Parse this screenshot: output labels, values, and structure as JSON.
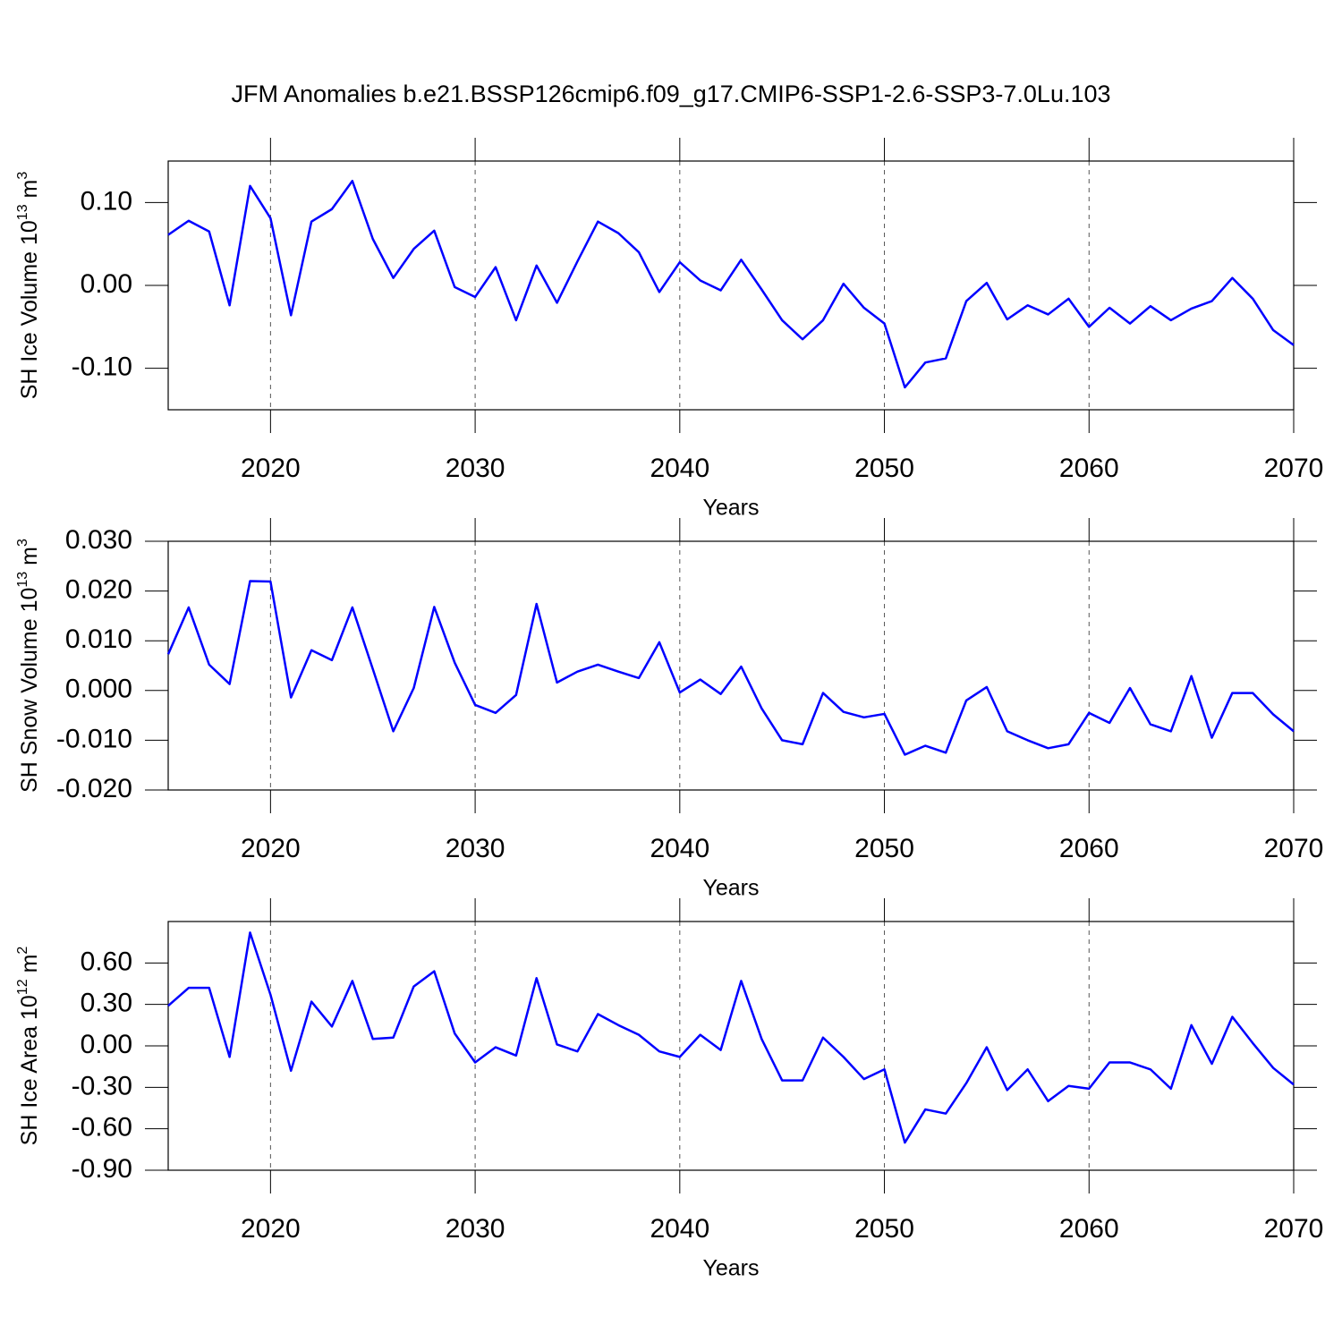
{
  "title": "JFM Anomalies b.e21.BSSP126cmip6.f09_g17.CMIP6-SSP1-2.6-SSP3-7.0Lu.103",
  "chart_data": [
    {
      "type": "line",
      "color": "#0000ff",
      "xlabel": "Years",
      "ylabel": [
        "SH Ice Volume 10",
        "13",
        " m",
        "3"
      ],
      "x": [
        2015,
        2016,
        2017,
        2018,
        2019,
        2020,
        2021,
        2022,
        2023,
        2024,
        2025,
        2026,
        2027,
        2028,
        2029,
        2030,
        2031,
        2032,
        2033,
        2034,
        2035,
        2036,
        2037,
        2038,
        2039,
        2040,
        2041,
        2042,
        2043,
        2044,
        2045,
        2046,
        2047,
        2048,
        2049,
        2050,
        2051,
        2052,
        2053,
        2054,
        2055,
        2056,
        2057,
        2058,
        2059,
        2060,
        2061,
        2062,
        2063,
        2064,
        2065,
        2066,
        2067,
        2068,
        2069,
        2070
      ],
      "values": [
        0.061,
        0.078,
        0.065,
        -0.024,
        0.12,
        0.081,
        -0.036,
        0.077,
        0.092,
        0.126,
        0.056,
        0.009,
        0.044,
        0.066,
        -0.002,
        -0.014,
        0.022,
        -0.042,
        0.024,
        -0.021,
        0.029,
        0.077,
        0.063,
        0.04,
        -0.008,
        0.028,
        0.006,
        -0.006,
        0.031,
        -0.005,
        -0.042,
        -0.065,
        -0.042,
        0.002,
        -0.027,
        -0.046,
        -0.123,
        -0.093,
        -0.088,
        -0.019,
        0.003,
        -0.041,
        -0.024,
        -0.035,
        -0.016,
        -0.05,
        -0.027,
        -0.046,
        -0.025,
        -0.042,
        -0.028,
        -0.019,
        0.009,
        -0.016,
        -0.054,
        -0.072
      ],
      "xlim": [
        2015,
        2070
      ],
      "xticks": [
        2020,
        2030,
        2040,
        2050,
        2060,
        2070
      ],
      "xgrid": true,
      "ylim": [
        -0.15,
        0.15
      ],
      "yticks": [
        {
          "value": 0.1,
          "label": "0.10"
        },
        {
          "value": 0,
          "label": "0.00"
        },
        {
          "value": -0.1,
          "label": "-0.10"
        }
      ]
    },
    {
      "type": "line",
      "color": "#0000ff",
      "xlabel": "Years",
      "ylabel": [
        "SH Snow Volume 10",
        "13",
        " m",
        "3"
      ],
      "x": [
        2015,
        2016,
        2017,
        2018,
        2019,
        2020,
        2021,
        2022,
        2023,
        2024,
        2025,
        2026,
        2027,
        2028,
        2029,
        2030,
        2031,
        2032,
        2033,
        2034,
        2035,
        2036,
        2037,
        2038,
        2039,
        2040,
        2041,
        2042,
        2043,
        2044,
        2045,
        2046,
        2047,
        2048,
        2049,
        2050,
        2051,
        2052,
        2053,
        2054,
        2055,
        2056,
        2057,
        2058,
        2059,
        2060,
        2061,
        2062,
        2063,
        2064,
        2065,
        2066,
        2067,
        2068,
        2069,
        2070
      ],
      "values": [
        0.0073,
        0.0167,
        0.0052,
        0.0013,
        0.022,
        0.0219,
        -0.0014,
        0.0081,
        0.0061,
        0.0167,
        0.0043,
        -0.0082,
        0.0005,
        0.0168,
        0.0056,
        -0.0029,
        -0.0045,
        -0.0009,
        0.0174,
        0.0016,
        0.0038,
        0.0052,
        0.0038,
        0.0025,
        0.0097,
        -0.0004,
        0.0022,
        -0.0007,
        0.0048,
        -0.0036,
        -0.01,
        -0.0108,
        -0.0005,
        -0.0043,
        -0.0054,
        -0.0047,
        -0.0129,
        -0.0111,
        -0.0125,
        -0.002,
        0.0007,
        -0.0082,
        -0.01,
        -0.0116,
        -0.0108,
        -0.0045,
        -0.0065,
        0.0005,
        -0.0068,
        -0.0082,
        0.0029,
        -0.0095,
        -0.0005,
        -0.0005,
        -0.0048,
        -0.0082
      ],
      "xlim": [
        2015,
        2070
      ],
      "xticks": [
        2020,
        2030,
        2040,
        2050,
        2060,
        2070
      ],
      "xgrid": true,
      "ylim": [
        -0.02,
        0.03
      ],
      "yticks": [
        {
          "value": 0.03,
          "label": "0.030"
        },
        {
          "value": 0.02,
          "label": "0.020"
        },
        {
          "value": 0.01,
          "label": "0.010"
        },
        {
          "value": 0,
          "label": "0.000"
        },
        {
          "value": -0.01,
          "label": "-0.010"
        },
        {
          "value": -0.02,
          "label": "-0.020"
        }
      ]
    },
    {
      "type": "line",
      "color": "#0000ff",
      "xlabel": "Years",
      "ylabel": [
        "SH Ice Area 10",
        "12",
        " m",
        "2"
      ],
      "x": [
        2015,
        2016,
        2017,
        2018,
        2019,
        2020,
        2021,
        2022,
        2023,
        2024,
        2025,
        2026,
        2027,
        2028,
        2029,
        2030,
        2031,
        2032,
        2033,
        2034,
        2035,
        2036,
        2037,
        2038,
        2039,
        2040,
        2041,
        2042,
        2043,
        2044,
        2045,
        2046,
        2047,
        2048,
        2049,
        2050,
        2051,
        2052,
        2053,
        2054,
        2055,
        2056,
        2057,
        2058,
        2059,
        2060,
        2061,
        2062,
        2063,
        2064,
        2065,
        2066,
        2067,
        2068,
        2069,
        2070
      ],
      "values": [
        0.29,
        0.42,
        0.42,
        -0.08,
        0.82,
        0.37,
        -0.18,
        0.32,
        0.14,
        0.47,
        0.05,
        0.06,
        0.43,
        0.54,
        0.09,
        -0.12,
        -0.01,
        -0.07,
        0.49,
        0.01,
        -0.04,
        0.23,
        0.15,
        0.08,
        -0.04,
        -0.08,
        0.08,
        -0.03,
        0.47,
        0.05,
        -0.25,
        -0.25,
        0.06,
        -0.08,
        -0.24,
        -0.17,
        -0.7,
        -0.46,
        -0.49,
        -0.27,
        -0.01,
        -0.32,
        -0.17,
        -0.4,
        -0.29,
        -0.31,
        -0.12,
        -0.12,
        -0.17,
        -0.31,
        0.15,
        -0.13,
        0.21,
        0.02,
        -0.16,
        -0.28
      ],
      "xlim": [
        2015,
        2070
      ],
      "xticks": [
        2020,
        2030,
        2040,
        2050,
        2060,
        2070
      ],
      "xgrid": true,
      "ylim": [
        -0.9,
        0.9
      ],
      "yticks": [
        {
          "value": 0.6,
          "label": "0.60"
        },
        {
          "value": 0.3,
          "label": "0.30"
        },
        {
          "value": 0,
          "label": "0.00"
        },
        {
          "value": -0.3,
          "label": "-0.30"
        },
        {
          "value": -0.6,
          "label": "-0.60"
        },
        {
          "value": -0.9,
          "label": "-0.90"
        }
      ]
    }
  ]
}
